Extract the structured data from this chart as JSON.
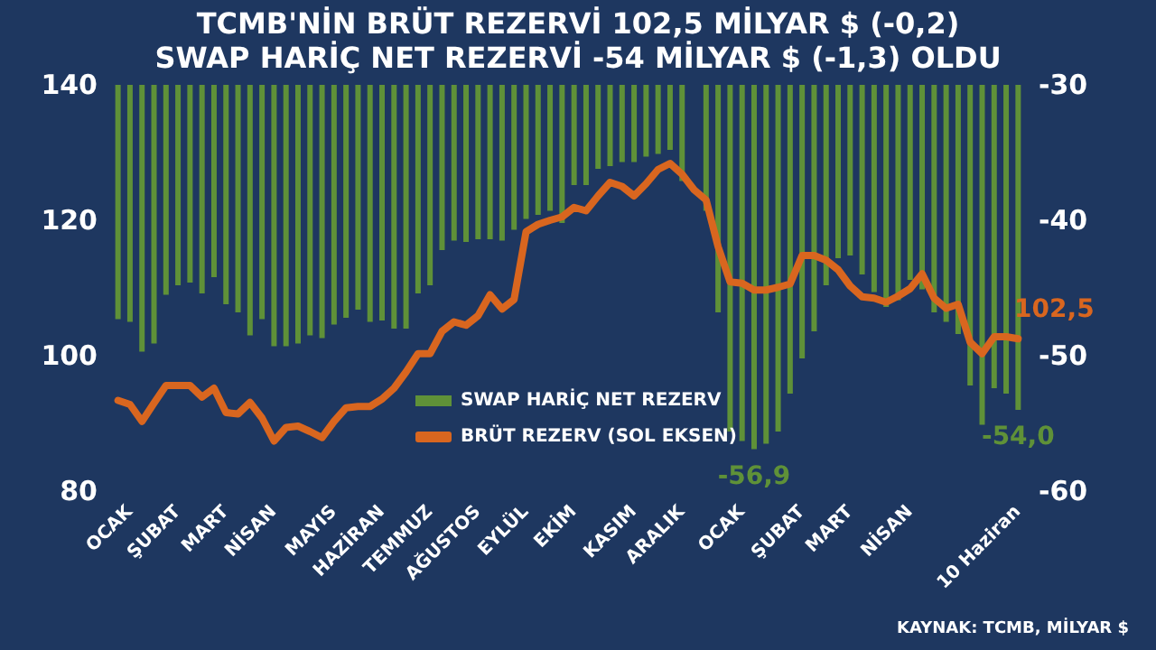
{
  "chart_data": {
    "type": "bar",
    "title": "TCMB'NİN BRÜT REZERVİ 102,5 MİLYAR $ (-0,2)",
    "subtitle": "SWAP HARİÇ NET REZERVİ -54 MİLYAR $ (-1,3) OLDU",
    "annotations": [
      "KAYNAK: TCMB, MİLYAR $"
    ],
    "categories": [
      null,
      "OCAK",
      null,
      null,
      null,
      "ŞUBAT",
      null,
      null,
      null,
      "MART",
      null,
      null,
      null,
      "NİSAN",
      null,
      null,
      null,
      null,
      "MAYIS",
      null,
      null,
      null,
      "HAZİRAN",
      null,
      null,
      null,
      "TEMMUZ",
      null,
      null,
      null,
      "AĞUSTOS",
      null,
      null,
      null,
      "EYLÜL",
      null,
      null,
      null,
      "EKİM",
      null,
      null,
      null,
      null,
      "KASIM",
      null,
      null,
      null,
      "ARALIK",
      null,
      null,
      null,
      null,
      "OCAK",
      null,
      null,
      null,
      null,
      "ŞUBAT",
      null,
      null,
      null,
      "MART",
      null,
      null,
      null,
      null,
      "NİSAN",
      null,
      null,
      null,
      null,
      null,
      null,
      null,
      null,
      "10 Haziran"
    ],
    "series": [
      {
        "name": "SWAP HARİÇ NET REZERV",
        "axis": "y2",
        "color": "#5f9138",
        "values": [
          -47.3,
          -47.5,
          -49.7,
          -49.1,
          -45.5,
          -44.8,
          -44.6,
          -45.4,
          -44.2,
          -46.2,
          -46.8,
          -48.5,
          -47.3,
          -49.3,
          -49.3,
          -49.1,
          -48.5,
          -48.7,
          -47.7,
          -47.2,
          -46.6,
          -47.5,
          -47.4,
          -48.0,
          -48.0,
          -45.4,
          -44.8,
          -42.2,
          -41.5,
          -41.6,
          -41.4,
          -41.4,
          -41.5,
          -40.7,
          -39.9,
          -39.6,
          -39.3,
          -40.2,
          -37.4,
          -37.4,
          -36.2,
          -36.0,
          -35.7,
          -35.7,
          -35.3,
          -35.1,
          -34.8,
          -37.1,
          null,
          -39.3,
          -46.8,
          -55.6,
          -56.3,
          -56.9,
          -56.5,
          -55.6,
          -52.8,
          -50.2,
          -48.2,
          -44.8,
          -42.8,
          -42.6,
          -44.0,
          -45.3,
          -46.4,
          -45.9,
          -44.4,
          -45.1,
          -46.8,
          -47.5,
          -48.4,
          -52.2,
          -55.1,
          -52.4,
          -52.8,
          -54.0
        ],
        "value_labels": [
          null,
          null,
          null,
          null,
          null,
          null,
          null,
          null,
          null,
          null,
          null,
          null,
          null,
          null,
          null,
          null,
          null,
          null,
          null,
          null,
          null,
          null,
          null,
          null,
          null,
          null,
          null,
          null,
          null,
          null,
          null,
          null,
          null,
          null,
          null,
          null,
          null,
          null,
          null,
          null,
          null,
          null,
          null,
          null,
          null,
          null,
          null,
          null,
          null,
          null,
          null,
          null,
          null,
          "-56,9",
          null,
          null,
          null,
          null,
          null,
          null,
          null,
          null,
          null,
          null,
          null,
          null,
          null,
          null,
          null,
          null,
          null,
          null,
          null,
          null,
          null,
          "-54,0"
        ]
      },
      {
        "name": "BRÜT REZERV (SOL EKSEN)",
        "type": "line",
        "color": "#d9661f",
        "values": [
          93.4,
          92.8,
          90.3,
          93.0,
          95.6,
          95.6,
          95.6,
          93.9,
          95.2,
          91.6,
          91.4,
          93.1,
          90.8,
          87.4,
          89.4,
          89.6,
          88.8,
          87.9,
          90.3,
          92.3,
          92.5,
          92.5,
          93.6,
          95.2,
          97.6,
          100.3,
          100.3,
          103.6,
          105.0,
          104.5,
          105.9,
          109.0,
          106.9,
          108.3,
          118.3,
          119.4,
          120.0,
          120.5,
          121.9,
          121.4,
          123.6,
          125.6,
          125.0,
          123.6,
          125.4,
          127.5,
          128.4,
          126.8,
          124.5,
          123.0,
          116.1,
          110.9,
          110.7,
          109.7,
          109.7,
          110.1,
          110.6,
          114.8,
          114.8,
          114.1,
          112.7,
          110.3,
          108.7,
          108.5,
          107.9,
          108.8,
          109.9,
          112.1,
          108.5,
          107.0,
          107.6,
          102.0,
          100.3,
          102.8,
          102.8,
          102.5
        ],
        "value_labels": [
          null,
          null,
          null,
          null,
          null,
          null,
          null,
          null,
          null,
          null,
          null,
          null,
          null,
          null,
          null,
          null,
          null,
          null,
          null,
          null,
          null,
          null,
          null,
          null,
          null,
          null,
          null,
          null,
          null,
          null,
          null,
          null,
          null,
          null,
          null,
          null,
          null,
          null,
          null,
          null,
          null,
          null,
          null,
          null,
          null,
          null,
          null,
          null,
          null,
          null,
          null,
          null,
          null,
          null,
          null,
          null,
          null,
          null,
          null,
          null,
          null,
          null,
          null,
          null,
          null,
          null,
          null,
          null,
          null,
          null,
          null,
          null,
          null,
          null,
          null,
          "102,5"
        ]
      }
    ],
    "ylim": [
      80,
      140
    ],
    "yticks": [
      80,
      100,
      120,
      140
    ],
    "y2lim": [
      -60,
      -30
    ],
    "y2ticks": [
      -60,
      -50,
      -40,
      -30
    ],
    "grid": false,
    "legend": "bottom",
    "marker": "none",
    "line_style": "solid"
  }
}
